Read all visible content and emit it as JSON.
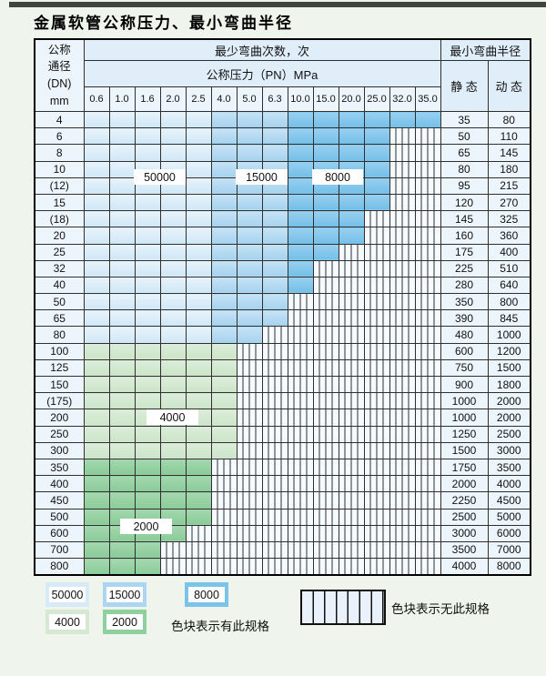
{
  "page": {
    "title": "金属软管公称压力、最小弯曲半径"
  },
  "table_header": {
    "dn_lines": [
      "公称",
      "通径",
      "(DN)",
      "mm"
    ],
    "bend_times": "最少弯曲次数，次",
    "bend_radius": "最小弯曲半径",
    "pressure": "公称压力（PN）MPa",
    "static": "静 态",
    "dynamic": "动 态"
  },
  "overlays": {
    "l50000": "50000",
    "l15000": "15000",
    "l8000": "8000",
    "l4000": "4000",
    "l2000": "2000"
  },
  "legend": {
    "swatches": [
      {
        "label": "50000",
        "color": "#d7eaf8"
      },
      {
        "label": "15000",
        "color": "#abd6f1"
      },
      {
        "label": "8000",
        "color": "#7cc3ea"
      },
      {
        "label": "4000",
        "color": "#d5e9d2"
      },
      {
        "label": "2000",
        "color": "#90cf9e"
      }
    ],
    "has_spec": "色块表示有此规格",
    "no_spec": "色块表示无此规格"
  },
  "colors": {
    "cycles_50000": "#d7eaf8",
    "cycles_15000": "#abd6f1",
    "cycles_8000": "#7cc3ea",
    "cycles_4000": "#d5e9d2",
    "cycles_2000": "#90cf9e",
    "no_spec_fill": "#f5fafd",
    "header_band": "#e0eefa",
    "grid_line": "#2f2f2f",
    "page_bg": "#eff5ec"
  },
  "chart_data": {
    "type": "table",
    "title": "金属软管公称压力、最小弯曲半径",
    "pressure_columns": [
      "0.6",
      "1.0",
      "1.6",
      "2.0",
      "2.5",
      "4.0",
      "5.0",
      "6.3",
      "10.0",
      "15.0",
      "20.0",
      "25.0",
      "32.0",
      "35.0"
    ],
    "regions": [
      {
        "cycles": "50000",
        "pressure_range": "0.6–2.5 MPa",
        "dn_range": "4–80"
      },
      {
        "cycles": "15000",
        "pressure_range": "4.0–6.3 MPa",
        "dn_range": "4–80"
      },
      {
        "cycles": "8000",
        "pressure_range": "10.0–35.0 MPa",
        "dn_range": "4–80"
      },
      {
        "cycles": "4000",
        "pressure_range": "0.6–4.0 MPa",
        "dn_range": "100–300"
      },
      {
        "cycles": "2000",
        "pressure_range": "0.6–2.5 MPa (narrowing to 1.6)",
        "dn_range": "350–800"
      }
    ],
    "rows": [
      {
        "dn": "4",
        "avail": 14,
        "group": "blue",
        "static": "35",
        "dynamic": "80"
      },
      {
        "dn": "6",
        "avail": 12,
        "group": "blue",
        "static": "50",
        "dynamic": "110"
      },
      {
        "dn": "8",
        "avail": 12,
        "group": "blue",
        "static": "65",
        "dynamic": "145"
      },
      {
        "dn": "10",
        "avail": 12,
        "group": "blue",
        "static": "80",
        "dynamic": "180"
      },
      {
        "dn": "(12)",
        "avail": 12,
        "group": "blue",
        "static": "95",
        "dynamic": "215"
      },
      {
        "dn": "15",
        "avail": 12,
        "group": "blue",
        "static": "120",
        "dynamic": "270"
      },
      {
        "dn": "(18)",
        "avail": 11,
        "group": "blue",
        "static": "145",
        "dynamic": "325"
      },
      {
        "dn": "20",
        "avail": 11,
        "group": "blue",
        "static": "160",
        "dynamic": "360"
      },
      {
        "dn": "25",
        "avail": 10,
        "group": "blue",
        "static": "175",
        "dynamic": "400"
      },
      {
        "dn": "32",
        "avail": 9,
        "group": "blue",
        "static": "225",
        "dynamic": "510"
      },
      {
        "dn": "40",
        "avail": 9,
        "group": "blue",
        "static": "280",
        "dynamic": "640"
      },
      {
        "dn": "50",
        "avail": 8,
        "group": "blue",
        "static": "350",
        "dynamic": "800"
      },
      {
        "dn": "65",
        "avail": 8,
        "group": "blue",
        "static": "390",
        "dynamic": "845"
      },
      {
        "dn": "80",
        "avail": 7,
        "group": "blue",
        "static": "480",
        "dynamic": "1000"
      },
      {
        "dn": "100",
        "avail": 6,
        "group": "green4000",
        "static": "600",
        "dynamic": "1200"
      },
      {
        "dn": "125",
        "avail": 6,
        "group": "green4000",
        "static": "750",
        "dynamic": "1500"
      },
      {
        "dn": "150",
        "avail": 6,
        "group": "green4000",
        "static": "900",
        "dynamic": "1800"
      },
      {
        "dn": "(175)",
        "avail": 6,
        "group": "green4000",
        "static": "1000",
        "dynamic": "2000"
      },
      {
        "dn": "200",
        "avail": 6,
        "group": "green4000",
        "static": "1000",
        "dynamic": "2000"
      },
      {
        "dn": "250",
        "avail": 6,
        "group": "green4000",
        "static": "1250",
        "dynamic": "2500"
      },
      {
        "dn": "300",
        "avail": 6,
        "group": "green4000",
        "static": "1500",
        "dynamic": "3000"
      },
      {
        "dn": "350",
        "avail": 5,
        "group": "green2000",
        "static": "1750",
        "dynamic": "3500"
      },
      {
        "dn": "400",
        "avail": 5,
        "group": "green2000",
        "static": "2000",
        "dynamic": "4000"
      },
      {
        "dn": "450",
        "avail": 5,
        "group": "green2000",
        "static": "2250",
        "dynamic": "4500"
      },
      {
        "dn": "500",
        "avail": 5,
        "group": "green2000",
        "static": "2500",
        "dynamic": "5000"
      },
      {
        "dn": "600",
        "avail": 4,
        "group": "green2000",
        "static": "3000",
        "dynamic": "6000"
      },
      {
        "dn": "700",
        "avail": 3,
        "group": "green2000",
        "static": "3500",
        "dynamic": "7000"
      },
      {
        "dn": "800",
        "avail": 3,
        "group": "green2000",
        "static": "4000",
        "dynamic": "8000"
      }
    ]
  }
}
